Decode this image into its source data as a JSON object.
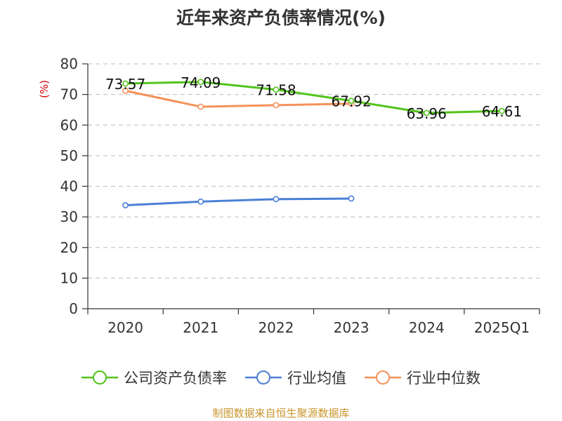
{
  "chart_data": {
    "type": "line",
    "title": "近年来资产负债率情况(%)",
    "ylabel": "(%)",
    "categories": [
      "2020",
      "2021",
      "2022",
      "2023",
      "2024",
      "2025Q1"
    ],
    "ylim": [
      0,
      80
    ],
    "yticks": [
      0,
      10,
      20,
      30,
      40,
      50,
      60,
      70,
      80
    ],
    "grid": true,
    "legend_position": "bottom",
    "series": [
      {
        "name": "公司资产负债率",
        "color": "#52c41a",
        "values": [
          73.57,
          74.09,
          71.58,
          67.92,
          63.96,
          64.61
        ],
        "labels": [
          "73.57",
          "74.09",
          "71.58",
          "67.92",
          "63.96",
          "64.61"
        ]
      },
      {
        "name": "行业均值",
        "color": "#4a7fd6",
        "values": [
          33.8,
          35.0,
          35.8,
          36.0,
          null,
          null
        ]
      },
      {
        "name": "行业中位数",
        "color": "#f5915a",
        "values": [
          71.2,
          66.0,
          66.5,
          67.0,
          null,
          null
        ]
      }
    ]
  },
  "source": "制图数据来自恒生聚源数据库"
}
